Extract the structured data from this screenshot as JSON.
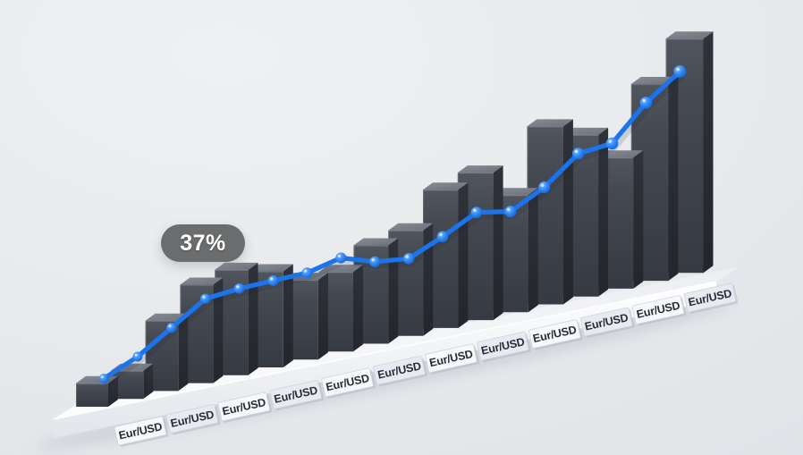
{
  "chart_data": {
    "type": "bar",
    "style": "3d-rendered bar chart with overlaid trend line on a white platform",
    "title": "",
    "callout": "37%",
    "x_tick_labels": [
      "Eur/USD",
      "Eur/USD",
      "Eur/USD",
      "Eur/USD",
      "Eur/USD",
      "Eur/USD",
      "Eur/USD",
      "Eur/USD",
      "Eur/USD",
      "Eur/USD",
      "Eur/USD",
      "Eur/USD"
    ],
    "series": [
      {
        "name": "volume-bars",
        "values": [
          10,
          12,
          30,
          42,
          45,
          41,
          34,
          34,
          42,
          45,
          59,
          63,
          50,
          76,
          69,
          56,
          84,
          100
        ]
      },
      {
        "name": "trend-line",
        "values": [
          12,
          18,
          27,
          36,
          37,
          37,
          37,
          40,
          35,
          33,
          39,
          46,
          43,
          50,
          61,
          62,
          76,
          86
        ]
      }
    ],
    "ylim": [
      0,
      100
    ],
    "grid": false,
    "legend": "none",
    "colors": {
      "background": "#e9ebee",
      "bar_front": "#42464f",
      "bar_side": "#2c2f36",
      "bar_top": "#7d828b",
      "trend_line": "#1a74ec",
      "trend_dot": "#2e86f3",
      "platform": "#f9fafc",
      "callout_bg": "#6a6c6e",
      "callout_text": "#ffffff",
      "label_text": "#272b35",
      "label_card": "#f6f8fa"
    }
  }
}
